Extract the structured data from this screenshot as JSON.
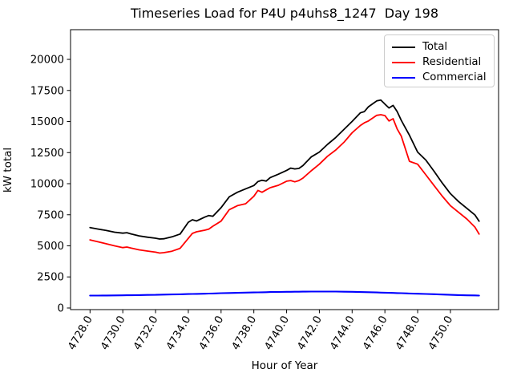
{
  "title": "Timeseries Load for P4U p4uhs8_1247  Day 198",
  "chart_data": {
    "type": "line",
    "title": "Timeseries Load for P4U p4uhs8_1247  Day 198",
    "xlabel": "Hour of Year",
    "ylabel": "kW total",
    "legend_position": "upper right",
    "grid": false,
    "xlim": [
      4726.81,
      4752.94
    ],
    "ylim": [
      -130,
      22390
    ],
    "x_ticks": [
      4728,
      4730,
      4732,
      4734,
      4736,
      4738,
      4740,
      4742,
      4744,
      4746,
      4748,
      4750
    ],
    "x_tick_labels": [
      "4728.0",
      "4730.0",
      "4732.0",
      "4734.0",
      "4736.0",
      "4738.0",
      "4740.0",
      "4742.0",
      "4744.0",
      "4746.0",
      "4748.0",
      "4750.0"
    ],
    "y_ticks": [
      0,
      2500,
      5000,
      7500,
      10000,
      12500,
      15000,
      17500,
      20000
    ],
    "y_tick_labels": [
      "0",
      "2500",
      "5000",
      "7500",
      "10000",
      "12500",
      "15000",
      "17500",
      "20000"
    ],
    "x": [
      4728,
      4728.5,
      4729,
      4729.5,
      4730,
      4730.25,
      4730.5,
      4731,
      4731.5,
      4732,
      4732.25,
      4732.5,
      4733,
      4733.5,
      4734,
      4734.25,
      4734.5,
      4735,
      4735.25,
      4735.5,
      4736,
      4736.5,
      4737,
      4737.5,
      4738,
      4738.25,
      4738.5,
      4738.75,
      4739,
      4739.5,
      4740,
      4740.25,
      4740.5,
      4740.75,
      4741,
      4741.5,
      4742,
      4742.5,
      4743,
      4743.5,
      4744,
      4744.5,
      4744.75,
      4745,
      4745.5,
      4745.75,
      4746,
      4746.25,
      4746.5,
      4746.75,
      4747,
      4747.5,
      4748,
      4748.5,
      4749,
      4749.5,
      4750,
      4750.5,
      4751,
      4751.5,
      4751.75
    ],
    "series": [
      {
        "name": "Total",
        "color": "#000000",
        "values": [
          6470,
          6350,
          6230,
          6100,
          6020,
          6060,
          5960,
          5800,
          5700,
          5610,
          5550,
          5570,
          5720,
          5950,
          6900,
          7100,
          7000,
          7310,
          7440,
          7380,
          8070,
          8940,
          9310,
          9590,
          9850,
          10170,
          10280,
          10210,
          10490,
          10760,
          11070,
          11250,
          11190,
          11230,
          11460,
          12150,
          12540,
          13160,
          13720,
          14360,
          15010,
          15700,
          15800,
          16190,
          16660,
          16730,
          16400,
          16090,
          16300,
          15800,
          15100,
          13900,
          12540,
          11900,
          11000,
          10060,
          9200,
          8560,
          8020,
          7480,
          6980
        ]
      },
      {
        "name": "Residential",
        "color": "#ff0000",
        "values": [
          5480,
          5320,
          5160,
          5000,
          4860,
          4900,
          4820,
          4680,
          4580,
          4490,
          4420,
          4450,
          4570,
          4800,
          5600,
          6000,
          6130,
          6260,
          6350,
          6580,
          6990,
          7910,
          8230,
          8390,
          8990,
          9460,
          9310,
          9500,
          9680,
          9870,
          10200,
          10250,
          10150,
          10250,
          10450,
          11030,
          11570,
          12210,
          12710,
          13330,
          14100,
          14680,
          14900,
          15050,
          15500,
          15550,
          15480,
          15050,
          15230,
          14400,
          13830,
          11800,
          11570,
          10710,
          9850,
          9000,
          8230,
          7700,
          7160,
          6500,
          5950
        ]
      },
      {
        "name": "Commercial",
        "color": "#0000ff",
        "values": [
          1000,
          1000,
          1005,
          1010,
          1020,
          1022,
          1025,
          1040,
          1050,
          1060,
          1068,
          1075,
          1090,
          1105,
          1120,
          1128,
          1135,
          1150,
          1158,
          1165,
          1190,
          1205,
          1220,
          1235,
          1250,
          1258,
          1265,
          1272,
          1280,
          1290,
          1300,
          1304,
          1308,
          1312,
          1315,
          1320,
          1325,
          1325,
          1320,
          1310,
          1300,
          1285,
          1278,
          1270,
          1250,
          1240,
          1230,
          1220,
          1210,
          1200,
          1190,
          1170,
          1150,
          1130,
          1110,
          1085,
          1060,
          1040,
          1020,
          1010,
          1000
        ]
      }
    ]
  },
  "legend": {
    "items": [
      {
        "label": "Total",
        "color": "#000000"
      },
      {
        "label": "Residential",
        "color": "#ff0000"
      },
      {
        "label": "Commercial",
        "color": "#0000ff"
      }
    ]
  }
}
